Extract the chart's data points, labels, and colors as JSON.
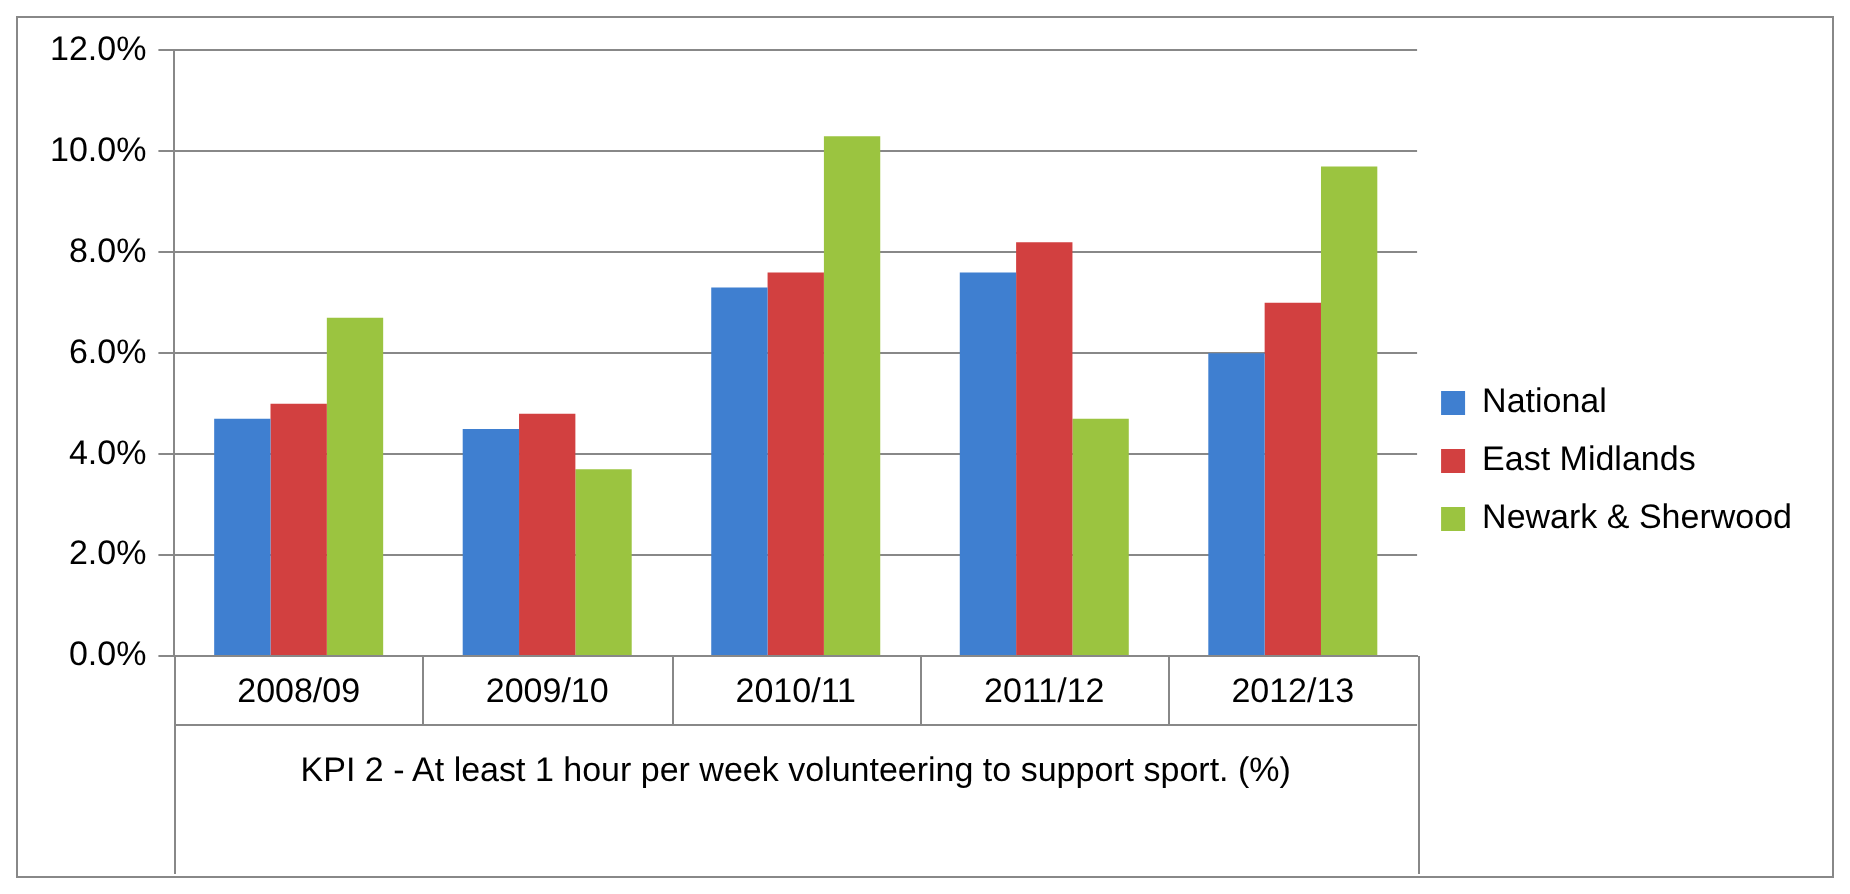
{
  "chart_data": {
    "type": "bar",
    "xlabel": "KPI 2 - At least 1 hour per week volunteering to support sport. (%)",
    "categories": [
      "2008/09",
      "2009/10",
      "2010/11",
      "2011/12",
      "2012/13"
    ],
    "series": [
      {
        "name": "National",
        "color": "#3f7fd0",
        "values": [
          4.7,
          4.5,
          7.3,
          7.6,
          6.0
        ]
      },
      {
        "name": "East Midlands",
        "color": "#d24040",
        "values": [
          5.0,
          4.8,
          7.6,
          8.2,
          7.0
        ]
      },
      {
        "name": "Newark & Sherwood",
        "color": "#9bc440",
        "values": [
          6.7,
          3.7,
          10.3,
          4.7,
          9.7
        ]
      }
    ],
    "ylim": [
      0,
      12
    ],
    "yticks": [
      {
        "value": 0,
        "label": "0.0%"
      },
      {
        "value": 2,
        "label": "2.0%"
      },
      {
        "value": 4,
        "label": "4.0%"
      },
      {
        "value": 6,
        "label": "6.0%"
      },
      {
        "value": 8,
        "label": "8.0%"
      },
      {
        "value": 10,
        "label": "10.0%"
      },
      {
        "value": 12,
        "label": "12.0%"
      }
    ],
    "grid": "y",
    "legend": "right"
  }
}
